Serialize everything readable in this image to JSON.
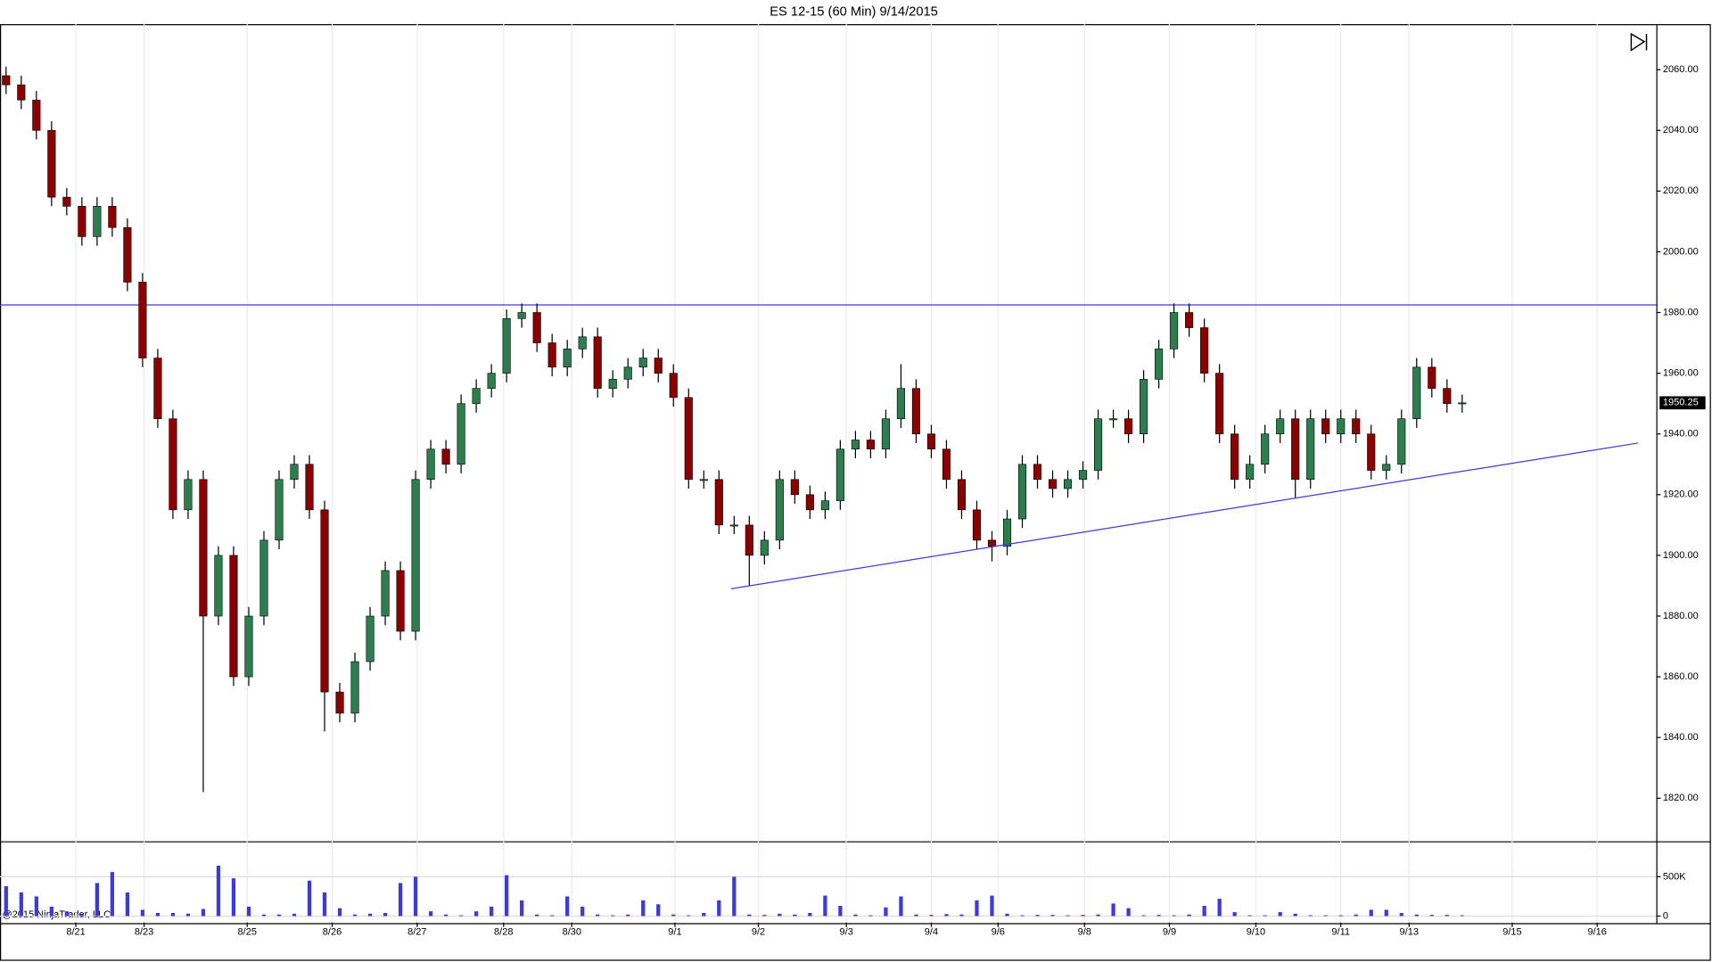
{
  "chart_data": {
    "type": "candlestick",
    "title": "ES 12-15 (60 Min)  9/14/2015",
    "copyright": "@2015 NinjaTrader, LLC",
    "x": [
      0,
      1,
      2,
      3,
      4,
      5,
      6,
      7,
      8,
      9,
      10,
      11,
      12,
      13,
      14,
      15,
      16,
      17,
      18,
      19,
      20,
      21,
      22,
      23,
      24,
      25,
      26,
      27,
      28,
      29,
      30,
      31,
      32,
      33,
      34,
      35,
      36,
      37,
      38,
      39,
      40,
      41,
      42,
      43,
      44,
      45,
      46,
      47,
      48,
      49,
      50,
      51,
      52,
      53,
      54,
      55,
      56,
      57,
      58,
      59,
      60,
      61,
      62,
      63,
      64,
      65,
      66,
      67,
      68,
      69,
      70,
      71,
      72,
      73,
      74,
      75,
      76,
      77,
      78,
      79,
      80,
      81,
      82,
      83,
      84,
      85,
      86,
      87,
      88,
      89,
      90,
      91,
      92,
      93,
      94,
      95,
      96
    ],
    "open": [
      2058,
      2055,
      2050,
      2040,
      2018,
      2015,
      2005,
      2015,
      2008,
      1990,
      1965,
      1945,
      1915,
      1925,
      1880,
      1900,
      1860,
      1880,
      1905,
      1925,
      1930,
      1915,
      1855,
      1848,
      1865,
      1880,
      1895,
      1875,
      1925,
      1935,
      1930,
      1950,
      1955,
      1960,
      1978,
      1980,
      1970,
      1962,
      1968,
      1972,
      1955,
      1958,
      1962,
      1965,
      1960,
      1952,
      1925,
      1925,
      1910,
      1910,
      1900,
      1905,
      1925,
      1920,
      1915,
      1918,
      1935,
      1938,
      1935,
      1945,
      1955,
      1940,
      1935,
      1925,
      1915,
      1905,
      1903,
      1912,
      1930,
      1925,
      1922,
      1925,
      1928,
      1945,
      1945,
      1940,
      1958,
      1968,
      1980,
      1975,
      1960,
      1940,
      1925,
      1930,
      1940,
      1945,
      1925,
      1945,
      1940,
      1945,
      1940,
      1928,
      1930,
      1945,
      1962,
      1955,
      1950
    ],
    "high": [
      2061,
      2058,
      2053,
      2043,
      2021,
      2018,
      2018,
      2018,
      2011,
      1993,
      1968,
      1948,
      1928,
      1928,
      1903,
      1903,
      1883,
      1908,
      1928,
      1933,
      1933,
      1918,
      1858,
      1868,
      1883,
      1898,
      1898,
      1928,
      1938,
      1938,
      1953,
      1958,
      1963,
      1981,
      1983,
      1983,
      1973,
      1971,
      1975,
      1975,
      1961,
      1965,
      1968,
      1968,
      1963,
      1955,
      1928,
      1928,
      1913,
      1913,
      1908,
      1928,
      1928,
      1923,
      1921,
      1938,
      1941,
      1941,
      1948,
      1963,
      1958,
      1943,
      1938,
      1928,
      1918,
      1908,
      1915,
      1933,
      1933,
      1928,
      1928,
      1931,
      1948,
      1948,
      1948,
      1961,
      1971,
      1983,
      1983,
      1978,
      1963,
      1943,
      1933,
      1943,
      1948,
      1948,
      1948,
      1948,
      1948,
      1948,
      1943,
      1933,
      1948,
      1965,
      1965,
      1958,
      1953
    ],
    "low": [
      2052,
      2047,
      2037,
      2015,
      2012,
      2002,
      2002,
      2005,
      1987,
      1962,
      1942,
      1912,
      1912,
      1822,
      1877,
      1857,
      1857,
      1877,
      1902,
      1922,
      1912,
      1842,
      1845,
      1845,
      1862,
      1877,
      1872,
      1872,
      1922,
      1927,
      1927,
      1947,
      1952,
      1957,
      1975,
      1967,
      1959,
      1959,
      1965,
      1952,
      1952,
      1955,
      1959,
      1957,
      1949,
      1922,
      1922,
      1907,
      1907,
      1890,
      1897,
      1902,
      1917,
      1912,
      1912,
      1915,
      1932,
      1932,
      1932,
      1942,
      1937,
      1932,
      1922,
      1912,
      1902,
      1898,
      1900,
      1909,
      1922,
      1919,
      1919,
      1922,
      1925,
      1942,
      1937,
      1937,
      1955,
      1965,
      1972,
      1957,
      1937,
      1922,
      1922,
      1927,
      1937,
      1919,
      1922,
      1937,
      1937,
      1937,
      1925,
      1925,
      1927,
      1942,
      1952,
      1947,
      1947
    ],
    "close": [
      2055,
      2050,
      2040,
      2018,
      2015,
      2005,
      2015,
      2008,
      1990,
      1965,
      1945,
      1915,
      1925,
      1880,
      1900,
      1860,
      1880,
      1905,
      1925,
      1930,
      1915,
      1855,
      1848,
      1865,
      1880,
      1895,
      1875,
      1925,
      1935,
      1930,
      1950,
      1955,
      1960,
      1978,
      1980,
      1970,
      1962,
      1968,
      1972,
      1955,
      1958,
      1962,
      1965,
      1960,
      1952,
      1925,
      1925,
      1910,
      1910,
      1900,
      1905,
      1925,
      1920,
      1915,
      1918,
      1935,
      1938,
      1935,
      1945,
      1955,
      1940,
      1935,
      1925,
      1915,
      1905,
      1903,
      1912,
      1930,
      1925,
      1922,
      1925,
      1928,
      1945,
      1945,
      1940,
      1958,
      1968,
      1980,
      1975,
      1960,
      1940,
      1925,
      1930,
      1940,
      1945,
      1925,
      1945,
      1940,
      1945,
      1940,
      1928,
      1930,
      1945,
      1962,
      1955,
      1950,
      1950.25
    ],
    "up_color": "#2e7d4f",
    "down_color": "#8b0000",
    "xlim": [
      -0.4,
      108.8
    ],
    "xticks": [
      {
        "value": 4.6,
        "label": "8/21"
      },
      {
        "value": 9.1,
        "label": "8/23"
      },
      {
        "value": 15.9,
        "label": "8/25"
      },
      {
        "value": 21.5,
        "label": "8/26"
      },
      {
        "value": 27.1,
        "label": "8/27"
      },
      {
        "value": 32.8,
        "label": "8/28"
      },
      {
        "value": 37.3,
        "label": "8/30"
      },
      {
        "value": 44.1,
        "label": "9/1"
      },
      {
        "value": 49.6,
        "label": "9/2"
      },
      {
        "value": 55.4,
        "label": "9/3"
      },
      {
        "value": 61,
        "label": "9/4"
      },
      {
        "value": 65.4,
        "label": "9/6"
      },
      {
        "value": 71.1,
        "label": "9/8"
      },
      {
        "value": 76.7,
        "label": "9/9"
      },
      {
        "value": 82.4,
        "label": "9/10"
      },
      {
        "value": 88,
        "label": "9/11"
      },
      {
        "value": 92.5,
        "label": "9/13"
      },
      {
        "value": 99.3,
        "label": "9/15"
      },
      {
        "value": 104.9,
        "label": "9/16"
      }
    ],
    "ylim": [
      1806,
      2075
    ],
    "yticks": [
      {
        "value": 1820,
        "label": "1820.00"
      },
      {
        "value": 1840,
        "label": "1840.00"
      },
      {
        "value": 1860,
        "label": "1860.00"
      },
      {
        "value": 1880,
        "label": "1880.00"
      },
      {
        "value": 1900,
        "label": "1900.00"
      },
      {
        "value": 1920,
        "label": "1920.00"
      },
      {
        "value": 1940,
        "label": "1940.00"
      },
      {
        "value": 1960,
        "label": "1960.00"
      },
      {
        "value": 1980,
        "label": "1980.00"
      },
      {
        "value": 2000,
        "label": "2000.00"
      },
      {
        "value": 2020,
        "label": "2020.00"
      },
      {
        "value": 2040,
        "label": "2040.00"
      },
      {
        "value": 2060,
        "label": "2060.00"
      }
    ],
    "grid": true,
    "last_price": 1950.25,
    "hline": {
      "value": 1982.5,
      "color": "#3a3adf"
    },
    "trendline": {
      "x": [
        47.8,
        107.6
      ],
      "y": [
        1889,
        1937
      ],
      "color": "#3a3adf"
    },
    "volume": {
      "color": "#3a3adf",
      "values": [
        380000,
        300000,
        250000,
        120000,
        60000,
        30000,
        420000,
        560000,
        300000,
        80000,
        40000,
        40000,
        30000,
        90000,
        640000,
        480000,
        120000,
        20000,
        20000,
        30000,
        450000,
        300000,
        100000,
        20000,
        30000,
        40000,
        420000,
        500000,
        60000,
        20000,
        10000,
        60000,
        120000,
        520000,
        200000,
        20000,
        10000,
        250000,
        120000,
        20000,
        10000,
        20000,
        200000,
        150000,
        20000,
        10000,
        40000,
        200000,
        500000,
        20000,
        15000,
        30000,
        20000,
        40000,
        260000,
        130000,
        20000,
        10000,
        110000,
        250000,
        20000,
        15000,
        25000,
        20000,
        200000,
        260000,
        30000,
        10000,
        15000,
        15000,
        10000,
        15000,
        20000,
        160000,
        100000,
        10000,
        15000,
        10000,
        20000,
        130000,
        220000,
        50000,
        10000,
        10000,
        50000,
        30000,
        10000,
        10000,
        10000,
        20000,
        80000,
        80000,
        40000,
        20000,
        15000,
        15000,
        10000
      ],
      "ylim": [
        -83000,
        930000
      ],
      "yticks": [
        0,
        {
          "value": 500000,
          "label": "500K"
        }
      ]
    }
  }
}
